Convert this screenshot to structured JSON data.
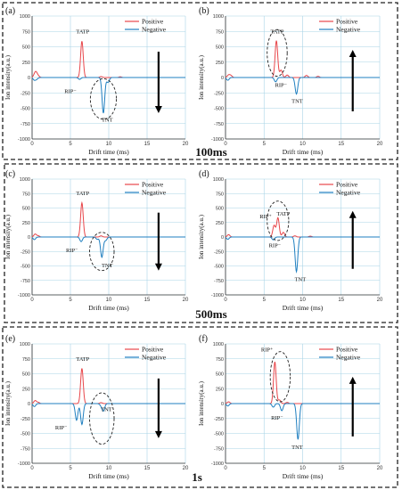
{
  "figure": {
    "group_labels": [
      "100ms",
      "500ms",
      "1s"
    ],
    "colors": {
      "positive": "#e8474b",
      "negative": "#1f7fc0",
      "grid": "#a8d4e6",
      "axis": "#333333",
      "box": "#222222"
    }
  },
  "chart_data": [
    {
      "panel_label": "(a)",
      "type": "line",
      "xlabel": "Drift time (ms)",
      "ylabel": "Ion intensity(a.u.)",
      "xlim": [
        0,
        20
      ],
      "ylim": [
        -1000,
        1000
      ],
      "xticks": [
        "0",
        "5",
        "10",
        "15",
        "20"
      ],
      "yticks": [
        "1000",
        "750",
        "500",
        "250",
        "0",
        "-250",
        "-500",
        "-750",
        "-1000"
      ],
      "grid": true,
      "legend": "top-right",
      "arrow_direction": "down",
      "series": [
        {
          "name": "Positive",
          "peaks": [
            [
              0.3,
              30
            ],
            [
              0.5,
              80
            ],
            [
              0.8,
              25
            ],
            [
              6.5,
              590
            ],
            [
              9.0,
              15
            ],
            [
              11.5,
              12
            ]
          ]
        },
        {
          "name": "Negative",
          "peaks": [
            [
              0.3,
              -40
            ],
            [
              0.6,
              -25
            ],
            [
              6.2,
              -30
            ],
            [
              9.3,
              -580
            ],
            [
              9.9,
              -80
            ]
          ]
        }
      ],
      "annotations": [
        {
          "text": "TATP",
          "x": 6.6,
          "y": 720
        },
        {
          "text": "RIP⁻",
          "x": 5.0,
          "y": -250
        },
        {
          "text": "TNT",
          "x": 9.8,
          "y": -720
        }
      ],
      "ellipses": [
        {
          "cx": 9.3,
          "cy": -350,
          "rx": 1.7,
          "ry": 330
        }
      ]
    },
    {
      "panel_label": "(b)",
      "type": "line",
      "xlabel": "Drift time (ms)",
      "ylabel": "Ion intensity(a.u.)",
      "xlim": [
        0,
        20
      ],
      "ylim": [
        -1000,
        1000
      ],
      "xticks": [
        "0",
        "5",
        "10",
        "15",
        "20"
      ],
      "yticks": [
        "1000",
        "750",
        "500",
        "250",
        "0",
        "-250",
        "-500",
        "-750",
        "-1000"
      ],
      "grid": true,
      "legend": "top-right",
      "arrow_direction": "up",
      "series": [
        {
          "name": "Positive",
          "peaks": [
            [
              0.4,
              40
            ],
            [
              0.7,
              30
            ],
            [
              6.6,
              600
            ],
            [
              7.2,
              120
            ],
            [
              8.0,
              40
            ],
            [
              10.5,
              35
            ],
            [
              12.0,
              20
            ]
          ]
        },
        {
          "name": "Negative",
          "peaks": [
            [
              0.3,
              -45
            ],
            [
              6.5,
              -70
            ],
            [
              9.2,
              -270
            ]
          ]
        }
      ],
      "annotations": [
        {
          "text": "TATP",
          "x": 6.7,
          "y": 720
        },
        {
          "text": "RIP⁻",
          "x": 7.2,
          "y": -150
        },
        {
          "text": "TNT",
          "x": 9.3,
          "y": -410
        }
      ],
      "ellipses": [
        {
          "cx": 6.7,
          "cy": 400,
          "rx": 1.3,
          "ry": 380
        }
      ]
    },
    {
      "panel_label": "(c)",
      "type": "line",
      "xlabel": "Drift time (ms)",
      "ylabel": "Ion intensity(a.u.)",
      "xlim": [
        0,
        20
      ],
      "ylim": [
        -1000,
        1000
      ],
      "xticks": [
        "0",
        "5",
        "10",
        "15",
        "20"
      ],
      "yticks": [
        "1000",
        "750",
        "500",
        "250",
        "0",
        "-250",
        "-500",
        "-750",
        "-1000"
      ],
      "grid": true,
      "legend": "top-right",
      "arrow_direction": "down",
      "series": [
        {
          "name": "Positive",
          "peaks": [
            [
              0.4,
              50
            ],
            [
              0.8,
              20
            ],
            [
              6.5,
              590
            ],
            [
              9.0,
              20
            ]
          ]
        },
        {
          "name": "Negative",
          "peaks": [
            [
              0.3,
              -45
            ],
            [
              6.4,
              -80
            ],
            [
              8.5,
              -40
            ],
            [
              9.1,
              -350
            ],
            [
              9.6,
              -60
            ]
          ]
        }
      ],
      "annotations": [
        {
          "text": "TATP",
          "x": 6.6,
          "y": 720
        },
        {
          "text": "RIP⁻",
          "x": 5.2,
          "y": -260
        },
        {
          "text": "TNT",
          "x": 9.8,
          "y": -520
        }
      ],
      "ellipses": [
        {
          "cx": 9.1,
          "cy": -250,
          "rx": 1.6,
          "ry": 330
        }
      ]
    },
    {
      "panel_label": "(d)",
      "type": "line",
      "xlabel": "Drift time (ms)",
      "ylabel": "Ion intensity(a.u.)",
      "xlim": [
        0,
        20
      ],
      "ylim": [
        -1000,
        1000
      ],
      "xticks": [
        "0",
        "5",
        "10",
        "15",
        "20"
      ],
      "yticks": [
        "1000",
        "750",
        "500",
        "250",
        "0",
        "-250",
        "-500",
        "-750",
        "-1000"
      ],
      "grid": true,
      "legend": "top-right",
      "arrow_direction": "up",
      "series": [
        {
          "name": "Positive",
          "peaks": [
            [
              0.4,
              40
            ],
            [
              6.3,
              200
            ],
            [
              6.8,
              330
            ],
            [
              7.5,
              80
            ],
            [
              9.0,
              20
            ],
            [
              11.0,
              15
            ]
          ]
        },
        {
          "name": "Negative",
          "peaks": [
            [
              0.3,
              -40
            ],
            [
              6.2,
              -50
            ],
            [
              9.2,
              -600
            ]
          ]
        }
      ],
      "annotations": [
        {
          "text": "RIP⁺",
          "x": 5.2,
          "y": 320
        },
        {
          "text": "TATP",
          "x": 7.5,
          "y": 370
        },
        {
          "text": "RIP⁻",
          "x": 6.4,
          "y": -180
        },
        {
          "text": "TNT",
          "x": 9.7,
          "y": -760
        }
      ],
      "ellipses": [
        {
          "cx": 6.8,
          "cy": 280,
          "rx": 1.4,
          "ry": 340
        }
      ]
    },
    {
      "panel_label": "(e)",
      "type": "line",
      "xlabel": "Drift time (ms)",
      "ylabel": "Ion intensity(a.u.)",
      "xlim": [
        0,
        20
      ],
      "ylim": [
        -1000,
        1000
      ],
      "xticks": [
        "0",
        "5",
        "10",
        "15",
        "20"
      ],
      "yticks": [
        "1000",
        "750",
        "500",
        "250",
        "0",
        "-250",
        "-500",
        "-750",
        "-1000"
      ],
      "grid": true,
      "legend": "top-right",
      "arrow_direction": "down",
      "series": [
        {
          "name": "Positive",
          "peaks": [
            [
              0.4,
              50
            ],
            [
              0.8,
              20
            ],
            [
              6.5,
              590
            ],
            [
              9.0,
              15
            ]
          ]
        },
        {
          "name": "Negative",
          "peaks": [
            [
              0.3,
              -50
            ],
            [
              5.8,
              -280
            ],
            [
              6.5,
              -350
            ],
            [
              9.0,
              -30
            ],
            [
              9.3,
              -120
            ]
          ]
        }
      ],
      "annotations": [
        {
          "text": "TATP",
          "x": 6.6,
          "y": 720
        },
        {
          "text": "RIP⁻",
          "x": 3.8,
          "y": -430
        },
        {
          "text": "TNT",
          "x": 9.7,
          "y": -130
        }
      ],
      "ellipses": [
        {
          "cx": 9.1,
          "cy": -250,
          "rx": 1.6,
          "ry": 430
        }
      ]
    },
    {
      "panel_label": "(f)",
      "type": "line",
      "xlabel": "Drift time (ms)",
      "ylabel": "Ion intensity(a.u.)",
      "xlim": [
        0,
        20
      ],
      "ylim": [
        -1000,
        1000
      ],
      "xticks": [
        "0",
        "5",
        "10",
        "15",
        "20"
      ],
      "yticks": [
        "1000",
        "750",
        "500",
        "250",
        "0",
        "-250",
        "-500",
        "-750",
        "-1000"
      ],
      "grid": true,
      "legend": "top-right",
      "arrow_direction": "up",
      "series": [
        {
          "name": "Positive",
          "peaks": [
            [
              0.4,
              30
            ],
            [
              6.4,
              700
            ],
            [
              7.0,
              60
            ],
            [
              8.0,
              20
            ]
          ]
        },
        {
          "name": "Negative",
          "peaks": [
            [
              0.3,
              -40
            ],
            [
              6.2,
              -60
            ],
            [
              7.3,
              -120
            ],
            [
              9.4,
              -600
            ]
          ]
        }
      ],
      "annotations": [
        {
          "text": "RIP⁺",
          "x": 5.4,
          "y": 870
        },
        {
          "text": "RIP⁻",
          "x": 6.7,
          "y": -270
        },
        {
          "text": "TNT",
          "x": 9.3,
          "y": -760
        }
      ],
      "ellipses": [
        {
          "cx": 7.1,
          "cy": 450,
          "rx": 1.3,
          "ry": 420
        }
      ]
    }
  ]
}
